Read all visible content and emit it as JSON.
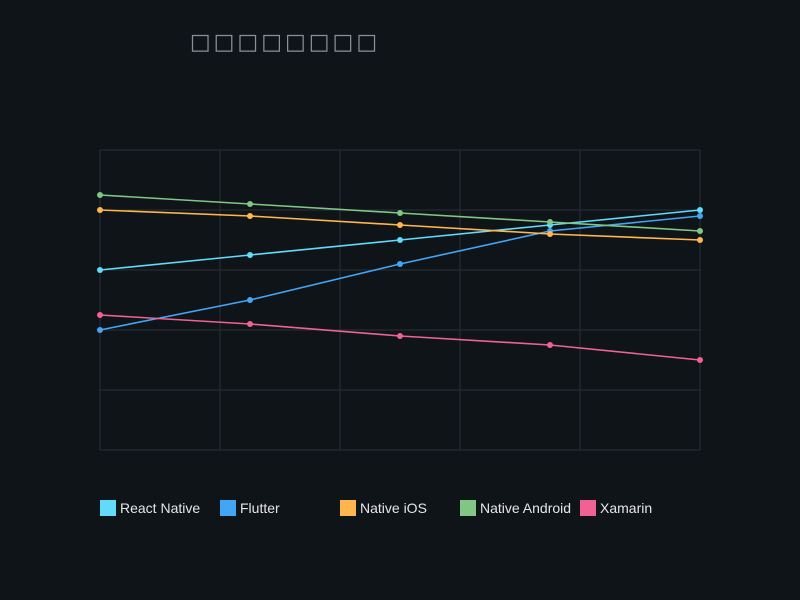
{
  "chart_data": {
    "type": "line",
    "title": "□□□□□□□□",
    "xlabel": "",
    "ylabel": "",
    "x": [
      0,
      1,
      2,
      3,
      4
    ],
    "ylim": [
      0,
      100
    ],
    "grid": true,
    "legend_placement": "bottom",
    "series": [
      {
        "name": "React Native",
        "color": "#61dafb",
        "values": [
          60,
          65,
          70,
          75,
          80
        ]
      },
      {
        "name": "Flutter",
        "color": "#42a5f5",
        "values": [
          40,
          50,
          62,
          73,
          78
        ]
      },
      {
        "name": "Native iOS",
        "color": "#ffb74d",
        "values": [
          80,
          78,
          75,
          72,
          70
        ]
      },
      {
        "name": "Native Android",
        "color": "#81c784",
        "values": [
          85,
          82,
          79,
          76,
          73
        ]
      },
      {
        "name": "Xamarin",
        "color": "#f06292",
        "values": [
          45,
          42,
          38,
          35,
          30
        ]
      }
    ]
  },
  "colors": {
    "background": "#0f1419",
    "grid": "#2a2f35",
    "title": "#8b9096",
    "legend_text": "#e6e6e6"
  }
}
